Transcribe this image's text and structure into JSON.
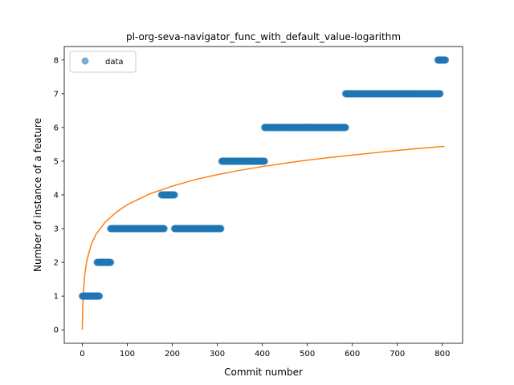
{
  "chart_data": {
    "type": "scatter",
    "title": "pl-org-seva-navigator_func_with_default_value-logarithm",
    "xlabel": "Commit number",
    "ylabel": "Number of instance of a feature",
    "xlim": [
      -40,
      845
    ],
    "ylim": [
      -0.4,
      8.4
    ],
    "xticks": [
      0,
      100,
      200,
      300,
      400,
      500,
      600,
      700,
      800
    ],
    "yticks": [
      0,
      1,
      2,
      3,
      4,
      5,
      6,
      7,
      8
    ],
    "grid": false,
    "legend": {
      "position": "top-left",
      "entries": [
        "data"
      ]
    },
    "colors": {
      "data": "#1f77b4",
      "fit": "#ff7f0e"
    },
    "series": [
      {
        "name": "data",
        "kind": "scatter",
        "segments": [
          {
            "x_start": 0,
            "x_end": 38,
            "y": 1
          },
          {
            "x_start": 33,
            "x_end": 63,
            "y": 2
          },
          {
            "x_start": 63,
            "x_end": 182,
            "y": 3
          },
          {
            "x_start": 176,
            "x_end": 205,
            "y": 4
          },
          {
            "x_start": 205,
            "x_end": 308,
            "y": 3
          },
          {
            "x_start": 310,
            "x_end": 405,
            "y": 5
          },
          {
            "x_start": 405,
            "x_end": 585,
            "y": 6
          },
          {
            "x_start": 585,
            "x_end": 795,
            "y": 7
          },
          {
            "x_start": 790,
            "x_end": 807,
            "y": 8
          }
        ]
      },
      {
        "kind": "line",
        "x": [
          0,
          1,
          2,
          5,
          10,
          20,
          30,
          50,
          75,
          100,
          150,
          200,
          250,
          300,
          350,
          400,
          450,
          500,
          550,
          600,
          650,
          700,
          750,
          805
        ],
        "y": [
          0.0,
          0.61,
          0.97,
          1.58,
          2.05,
          2.53,
          2.82,
          3.18,
          3.48,
          3.71,
          4.03,
          4.26,
          4.45,
          4.6,
          4.73,
          4.84,
          4.94,
          5.03,
          5.11,
          5.18,
          5.25,
          5.32,
          5.38,
          5.44
        ]
      }
    ]
  }
}
